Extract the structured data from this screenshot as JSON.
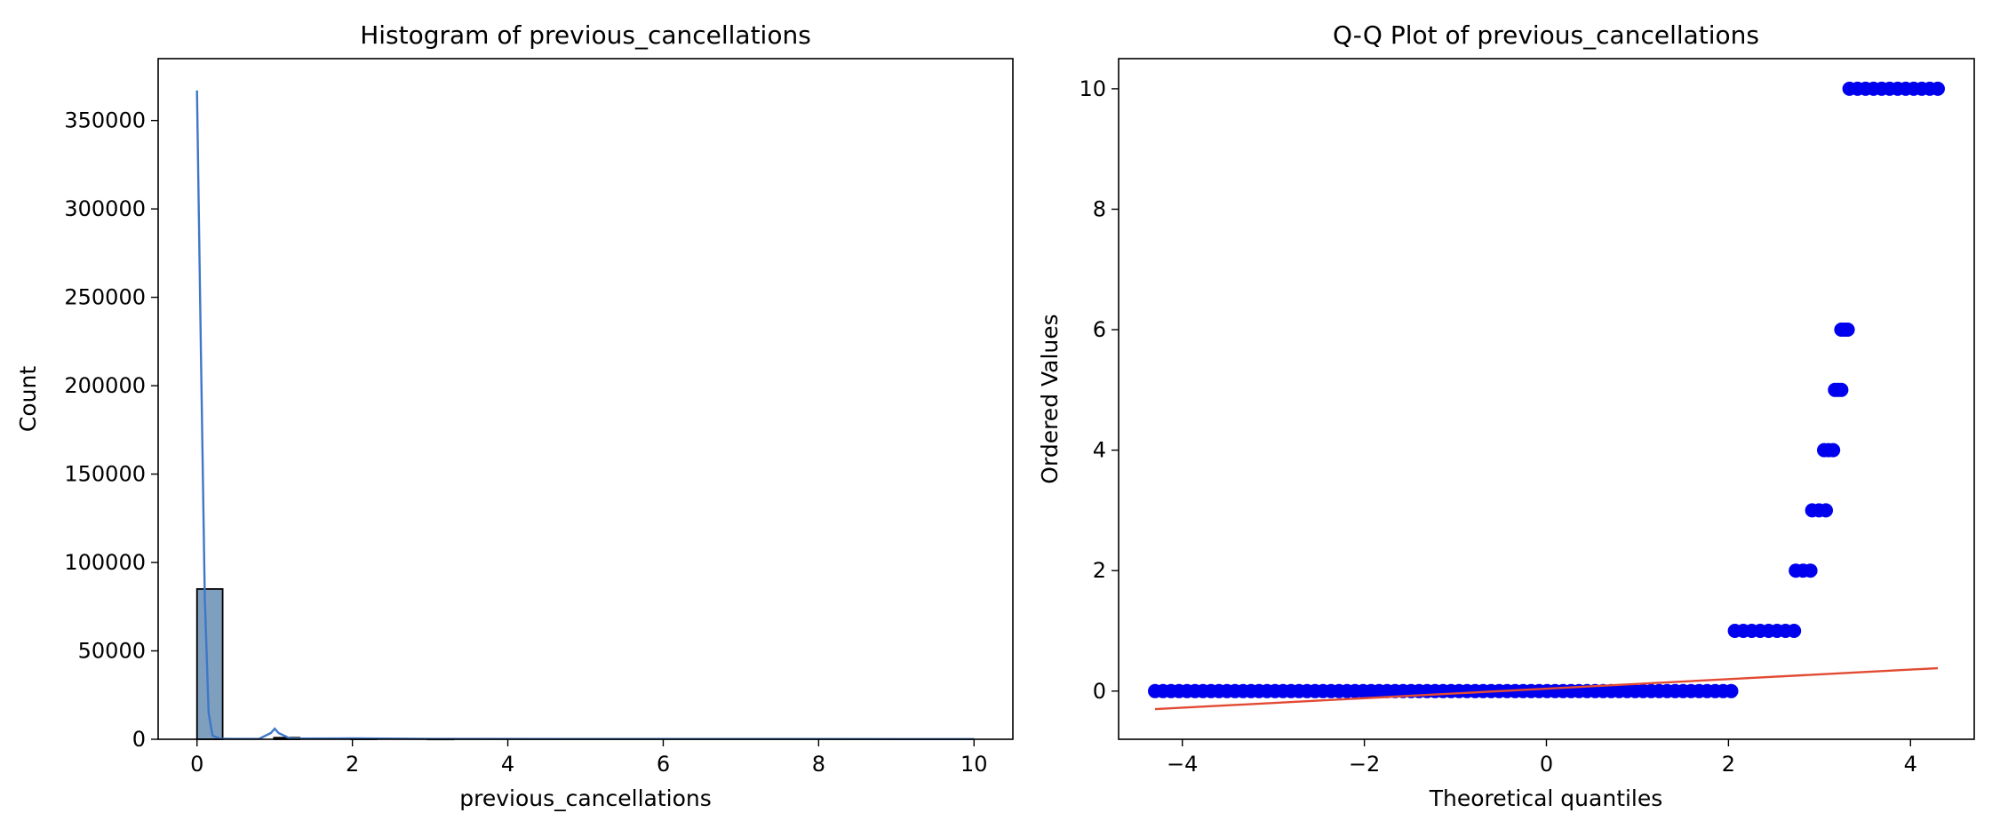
{
  "chart_data": [
    {
      "type": "bar",
      "title": "Histogram of previous_cancellations",
      "xlabel": "previous_cancellations",
      "ylabel": "Count",
      "xlim": [
        -0.5,
        10.5
      ],
      "ylim": [
        0,
        385000
      ],
      "xticks": [
        0,
        2,
        4,
        6,
        8,
        10
      ],
      "yticks": [
        0,
        50000,
        100000,
        150000,
        200000,
        250000,
        300000,
        350000
      ],
      "bin_width": 0.33,
      "bins": [
        {
          "x": 0.0,
          "value": 85000
        },
        {
          "x": 0.99,
          "value": 900
        },
        {
          "x": 1.98,
          "value": 400
        },
        {
          "x": 2.97,
          "value": 150
        }
      ],
      "kde": {
        "x": [
          0.0,
          0.05,
          0.1,
          0.15,
          0.2,
          0.3,
          0.5,
          0.8,
          0.95,
          1.0,
          1.05,
          1.2,
          2.0,
          3.0,
          10.0
        ],
        "y": [
          367000,
          220000,
          80000,
          15000,
          2000,
          300,
          200,
          300,
          3500,
          6000,
          3500,
          400,
          500,
          200,
          100
        ]
      },
      "colors": {
        "bar": "#7f9fbf",
        "kde": "#3e77c8",
        "edge": "#000000"
      }
    },
    {
      "type": "scatter",
      "title": "Q-Q Plot of previous_cancellations",
      "xlabel": "Theoretical quantiles",
      "ylabel": "Ordered Values",
      "xlim": [
        -4.7,
        4.7
      ],
      "ylim": [
        -0.8,
        10.5
      ],
      "xticks": [
        -4,
        -2,
        0,
        2,
        4
      ],
      "yticks": [
        0,
        2,
        4,
        6,
        8,
        10
      ],
      "point_groups": [
        {
          "value": 0,
          "x_from": -4.3,
          "x_to": 2.03
        },
        {
          "value": 1,
          "x_from": 2.07,
          "x_to": 2.72
        },
        {
          "value": 2,
          "x_from": 2.74,
          "x_to": 2.9
        },
        {
          "value": 3,
          "x_from": 2.92,
          "x_to": 3.07
        },
        {
          "value": 4,
          "x_from": 3.05,
          "x_to": 3.15
        },
        {
          "value": 5,
          "x_from": 3.17,
          "x_to": 3.24
        },
        {
          "value": 6,
          "x_from": 3.24,
          "x_to": 3.31
        },
        {
          "value": 10,
          "x_from": 3.33,
          "x_to": 4.3
        }
      ],
      "fit_line": {
        "x": [
          -4.3,
          4.3
        ],
        "y": [
          -0.3,
          0.38
        ]
      },
      "colors": {
        "points": "#0000ee",
        "line": "#e24a33"
      }
    }
  ]
}
